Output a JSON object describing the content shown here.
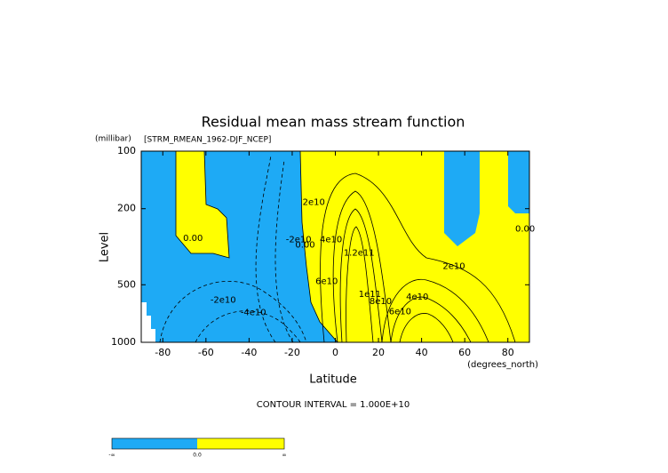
{
  "chart_data": {
    "type": "contour",
    "title": "Residual mean mass stream function",
    "subtitle": "[STRM_RMEAN_1962-DJF_NCEP]",
    "y_units": "(millibar)",
    "ylabel": "Level",
    "xlabel": "Latitude",
    "x_units": "(degrees_north)",
    "note": "CONTOUR INTERVAL = 1.000E+10",
    "xlim": [
      -90,
      90
    ],
    "xticks": [
      -80,
      -60,
      -40,
      -20,
      0,
      20,
      40,
      60,
      80
    ],
    "ylim": [
      1000,
      100
    ],
    "yticks": [
      100,
      200,
      500,
      1000
    ],
    "log_y": true,
    "colors": [
      "#1eaaf5",
      "#ffff00"
    ],
    "contour_labels": [
      {
        "text": "0.00",
        "x": -66,
        "y": 285
      },
      {
        "text": "-2e10",
        "x": -52,
        "y": 600
      },
      {
        "text": "-4e10",
        "x": -38,
        "y": 700
      },
      {
        "text": "-2e10",
        "x": -17,
        "y": 290
      },
      {
        "text": "0.00",
        "x": -14,
        "y": 310
      },
      {
        "text": "2e10",
        "x": -10,
        "y": 185
      },
      {
        "text": "4e10",
        "x": -2,
        "y": 290
      },
      {
        "text": "6e10",
        "x": -4,
        "y": 480
      },
      {
        "text": "1.2e11",
        "x": 11,
        "y": 340
      },
      {
        "text": "1e11",
        "x": 16,
        "y": 560
      },
      {
        "text": "8e10",
        "x": 21,
        "y": 610
      },
      {
        "text": "6e10",
        "x": 30,
        "y": 690
      },
      {
        "text": "4e10",
        "x": 38,
        "y": 580
      },
      {
        "text": "2e10",
        "x": 55,
        "y": 400
      },
      {
        "text": "0.00",
        "x": 88,
        "y": 255
      }
    ],
    "colorbar_labels": [
      "-∞",
      "0.0",
      "∞"
    ]
  }
}
